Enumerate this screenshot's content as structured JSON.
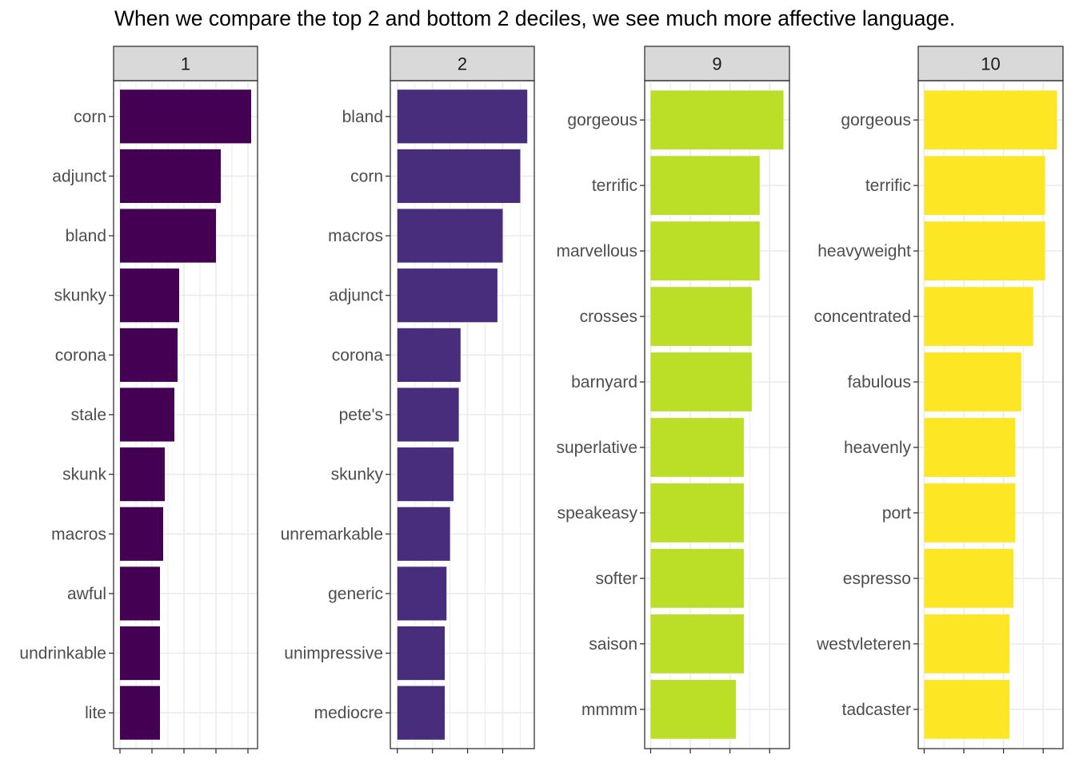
{
  "title": "When we compare the top 2 and bottom 2 deciles, we see much more affective language.",
  "chart_data": [
    {
      "type": "bar",
      "orientation": "horizontal",
      "panel": "1",
      "color": "#440154",
      "categories": [
        "corn",
        "adjunct",
        "bland",
        "skunky",
        "corona",
        "stale",
        "skunk",
        "macros",
        "awful",
        "undrinkable",
        "lite"
      ],
      "values": [
        41,
        31.5,
        30,
        18.5,
        18,
        17,
        14,
        13.5,
        12.5,
        12.5,
        12.5
      ],
      "xlim": [
        -2,
        43
      ],
      "x_ticks": [
        0,
        10,
        20,
        30,
        40
      ],
      "grid": true
    },
    {
      "type": "bar",
      "orientation": "horizontal",
      "panel": "2",
      "color": "#472D7B",
      "categories": [
        "bland",
        "corn",
        "macros",
        "adjunct",
        "corona",
        "pete's",
        "skunky",
        "unremarkable",
        "generic",
        "unimpressive",
        "mediocre"
      ],
      "values": [
        37,
        35,
        30,
        28.5,
        18,
        17.5,
        16,
        15,
        14,
        13.5,
        13.5
      ],
      "xlim": [
        -2,
        39
      ],
      "x_ticks": [
        0,
        10,
        20,
        30
      ],
      "grid": true
    },
    {
      "type": "bar",
      "orientation": "horizontal",
      "panel": "9",
      "color": "#BBDF27",
      "categories": [
        "gorgeous",
        "terrific",
        "marvellous",
        "crosses",
        "barnyard",
        "superlative",
        "speakeasy",
        "softer",
        "saison",
        "mmmm"
      ],
      "values": [
        33.5,
        27.5,
        27.5,
        25.5,
        25.5,
        23.5,
        23.5,
        23.5,
        23.5,
        21.5
      ],
      "xlim": [
        -1.5,
        35
      ],
      "x_ticks": [
        0,
        10,
        20,
        30
      ],
      "grid": true
    },
    {
      "type": "bar",
      "orientation": "horizontal",
      "panel": "10",
      "color": "#FDE725",
      "categories": [
        "gorgeous",
        "terrific",
        "heavyweight",
        "concentrated",
        "fabulous",
        "heavenly",
        "port",
        "espresso",
        "westvleteren",
        "tadcaster"
      ],
      "values": [
        33.5,
        30.5,
        30.5,
        27.5,
        24.5,
        23,
        23,
        22.5,
        21.5,
        21.5
      ],
      "xlim": [
        -1.5,
        35
      ],
      "x_ticks": [
        0,
        10,
        20,
        30
      ],
      "grid": true
    }
  ]
}
